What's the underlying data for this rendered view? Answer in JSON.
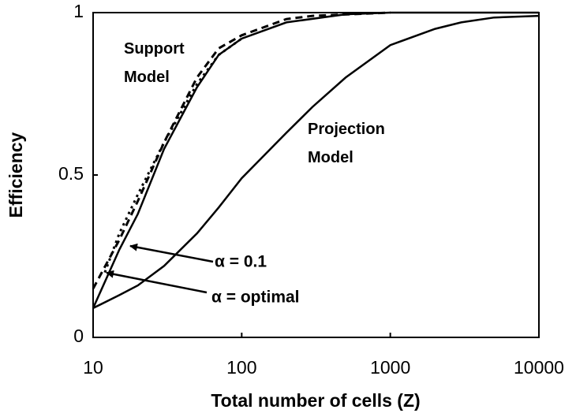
{
  "chart_data": {
    "type": "line",
    "xlabel": "Total number of cells (Z)",
    "ylabel": "Efficiency",
    "xscale": "log",
    "xlim": [
      10,
      10000
    ],
    "xticks": [
      10,
      100,
      1000,
      10000
    ],
    "ylim": [
      0,
      1
    ],
    "yticks": [
      0,
      0.5,
      1
    ],
    "grid": false,
    "series": [
      {
        "name": "Support Model",
        "color": "#000000",
        "style": "solid",
        "x": [
          10,
          15,
          20,
          30,
          50,
          70,
          100,
          200,
          500,
          1000,
          10000
        ],
        "values": [
          0.09,
          0.27,
          0.38,
          0.58,
          0.77,
          0.87,
          0.92,
          0.97,
          0.995,
          1,
          1
        ]
      },
      {
        "name": "Projection Model",
        "color": "#000000",
        "style": "solid",
        "x": [
          10,
          15,
          20,
          30,
          50,
          70,
          100,
          200,
          300,
          500,
          1000,
          2000,
          3000,
          5000,
          10000
        ],
        "values": [
          0.09,
          0.13,
          0.16,
          0.22,
          0.32,
          0.4,
          0.49,
          0.63,
          0.71,
          0.8,
          0.9,
          0.95,
          0.97,
          0.985,
          0.99
        ]
      },
      {
        "name": "α = 0.1",
        "color": "#000000",
        "style": "dotted",
        "x": [
          12,
          15,
          20,
          30,
          50,
          70,
          100
        ],
        "values": [
          0.2,
          0.32,
          0.44,
          0.6,
          0.78,
          0.87,
          0.92
        ]
      },
      {
        "name": "α = optimal",
        "color": "#000000",
        "style": "dashed",
        "x": [
          10,
          15,
          20,
          30,
          50,
          70,
          100,
          200,
          300,
          1000
        ],
        "values": [
          0.15,
          0.3,
          0.42,
          0.6,
          0.8,
          0.89,
          0.93,
          0.98,
          0.99,
          1
        ]
      }
    ]
  }
}
